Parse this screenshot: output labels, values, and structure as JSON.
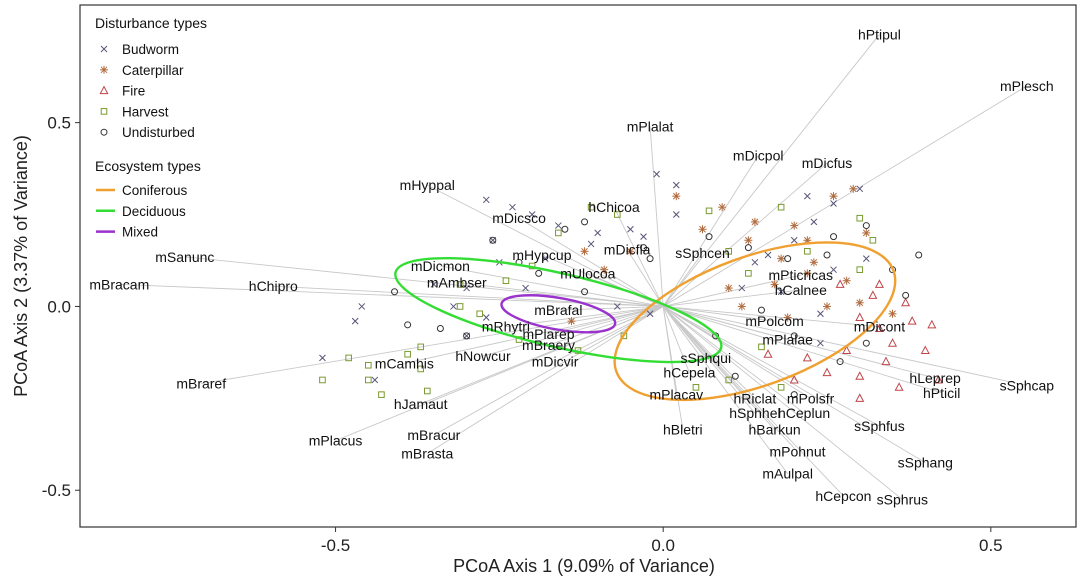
{
  "chart_data": {
    "type": "scatter",
    "xlabel": "PCoA Axis 1 (9.09% of Variance)",
    "ylabel": "PCoA Axis 2 (3.37% of Variance)",
    "xlim": [
      -0.89,
      0.63
    ],
    "ylim": [
      -0.6,
      0.82
    ],
    "x_ticks": [
      -0.5,
      0.0,
      0.5
    ],
    "y_ticks": [
      -0.5,
      0.0,
      0.5
    ],
    "x_tick_labels": [
      "-0.5",
      "0.0",
      "0.5"
    ],
    "y_tick_labels": [
      "-0.5",
      "0.0",
      "0.5"
    ],
    "grid": false,
    "legend_position": "top-left",
    "colors": {
      "budworm": "#555577",
      "caterpillar": "#b06a3c",
      "fire": "#c0454a",
      "harvest": "#7a9a30",
      "undisturbed": "#333333",
      "coniferous": "#f0a030",
      "deciduous": "#33dd33",
      "mixed": "#9933cc",
      "vectors": "#c8c8c8"
    },
    "legends": {
      "disturbance": {
        "title": "Disturbance types",
        "entries": [
          {
            "key": "budworm",
            "label": "Budworm",
            "marker": "x"
          },
          {
            "key": "caterpillar",
            "label": "Caterpillar",
            "marker": "asterisk"
          },
          {
            "key": "fire",
            "label": "Fire",
            "marker": "triangle"
          },
          {
            "key": "harvest",
            "label": "Harvest",
            "marker": "square"
          },
          {
            "key": "undisturbed",
            "label": "Undisturbed",
            "marker": "circle"
          }
        ]
      },
      "ecosystem": {
        "title": "Ecosystem types",
        "entries": [
          {
            "key": "coniferous",
            "label": "Coniferous"
          },
          {
            "key": "deciduous",
            "label": "Deciduous"
          },
          {
            "key": "mixed",
            "label": "Mixed"
          }
        ]
      }
    },
    "ellipses": [
      {
        "key": "coniferous",
        "cx": 0.14,
        "cy": -0.04,
        "rx": 0.225,
        "ry": 0.175,
        "angle": -20
      },
      {
        "key": "deciduous",
        "cx": -0.16,
        "cy": -0.01,
        "rx": 0.255,
        "ry": 0.1,
        "angle": 13
      },
      {
        "key": "mixed",
        "cx": -0.16,
        "cy": -0.02,
        "rx": 0.088,
        "ry": 0.043,
        "angle": 10
      }
    ],
    "species": [
      {
        "label": "hPtipul",
        "x": 0.33,
        "y": 0.74
      },
      {
        "label": "mPlesch",
        "x": 0.555,
        "y": 0.6
      },
      {
        "label": "mPlalat",
        "x": -0.02,
        "y": 0.49
      },
      {
        "label": "mDicpol",
        "x": 0.145,
        "y": 0.41
      },
      {
        "label": "mDicfus",
        "x": 0.25,
        "y": 0.39
      },
      {
        "label": "mHyppal",
        "x": -0.36,
        "y": 0.33
      },
      {
        "label": "hChicoa",
        "x": -0.075,
        "y": 0.27
      },
      {
        "label": "mDicsco",
        "x": -0.22,
        "y": 0.24
      },
      {
        "label": "mSanunc",
        "x": -0.73,
        "y": 0.135
      },
      {
        "label": "mDicfla",
        "x": -0.055,
        "y": 0.155
      },
      {
        "label": "sSphcen",
        "x": 0.06,
        "y": 0.145
      },
      {
        "label": "mHypcup",
        "x": -0.185,
        "y": 0.14
      },
      {
        "label": "mDicmon",
        "x": -0.34,
        "y": 0.11
      },
      {
        "label": "mUlocoa",
        "x": -0.115,
        "y": 0.09
      },
      {
        "label": "mPticricas",
        "x": 0.21,
        "y": 0.085
      },
      {
        "label": "mBracam",
        "x": -0.83,
        "y": 0.06
      },
      {
        "label": "hChipro",
        "x": -0.595,
        "y": 0.055
      },
      {
        "label": "mAmbser",
        "x": -0.315,
        "y": 0.065
      },
      {
        "label": "hCalnee",
        "x": 0.21,
        "y": 0.045
      },
      {
        "label": "mBrafal",
        "x": -0.16,
        "y": -0.01
      },
      {
        "label": "mPolcom",
        "x": 0.17,
        "y": -0.04
      },
      {
        "label": "mDicont",
        "x": 0.33,
        "y": -0.055
      },
      {
        "label": "mRhytri",
        "x": -0.24,
        "y": -0.055
      },
      {
        "label": "mPlarep",
        "x": -0.175,
        "y": -0.075
      },
      {
        "label": "mPlalae",
        "x": 0.19,
        "y": -0.09
      },
      {
        "label": "mBraery",
        "x": -0.175,
        "y": -0.105
      },
      {
        "label": "hNowcur",
        "x": -0.275,
        "y": -0.135
      },
      {
        "label": "mDicvir",
        "x": -0.165,
        "y": -0.15
      },
      {
        "label": "sSphqui",
        "x": 0.065,
        "y": -0.14
      },
      {
        "label": "mCamhis",
        "x": -0.395,
        "y": -0.155
      },
      {
        "label": "hCepela",
        "x": 0.04,
        "y": -0.18
      },
      {
        "label": "mBraref",
        "x": -0.705,
        "y": -0.21
      },
      {
        "label": "hLeprep",
        "x": 0.415,
        "y": -0.195
      },
      {
        "label": "sSphcap",
        "x": 0.555,
        "y": -0.215
      },
      {
        "label": "hPticil",
        "x": 0.425,
        "y": -0.235
      },
      {
        "label": "mPlacav",
        "x": 0.02,
        "y": -0.24
      },
      {
        "label": "hRiclat",
        "x": 0.14,
        "y": -0.25
      },
      {
        "label": "mPolsfr",
        "x": 0.225,
        "y": -0.25
      },
      {
        "label": "hJamaut",
        "x": -0.37,
        "y": -0.265
      },
      {
        "label": "hSphhel",
        "x": 0.14,
        "y": -0.29
      },
      {
        "label": "hCeplun",
        "x": 0.215,
        "y": -0.29
      },
      {
        "label": "sSphfus",
        "x": 0.33,
        "y": -0.325
      },
      {
        "label": "hBletri",
        "x": 0.03,
        "y": -0.335
      },
      {
        "label": "hBarkun",
        "x": 0.17,
        "y": -0.335
      },
      {
        "label": "mBracur",
        "x": -0.35,
        "y": -0.35
      },
      {
        "label": "mPlacus",
        "x": -0.5,
        "y": -0.365
      },
      {
        "label": "mPohnut",
        "x": 0.205,
        "y": -0.395
      },
      {
        "label": "mBrasta",
        "x": -0.36,
        "y": -0.4
      },
      {
        "label": "sSphang",
        "x": 0.4,
        "y": -0.425
      },
      {
        "label": "mAulpal",
        "x": 0.19,
        "y": -0.455
      },
      {
        "label": "hCepcon",
        "x": 0.275,
        "y": -0.515
      },
      {
        "label": "sSphrus",
        "x": 0.365,
        "y": -0.525
      }
    ],
    "sites": {
      "budworm": [
        [
          -0.27,
          0.29
        ],
        [
          -0.23,
          0.27
        ],
        [
          -0.2,
          0.25
        ],
        [
          -0.1,
          0.2
        ],
        [
          -0.05,
          0.21
        ],
        [
          -0.16,
          0.22
        ],
        [
          -0.11,
          0.17
        ],
        [
          -0.03,
          0.19
        ],
        [
          -0.26,
          0.18
        ],
        [
          -0.25,
          0.12
        ],
        [
          -0.18,
          0.13
        ],
        [
          -0.35,
          0.06
        ],
        [
          -0.3,
          0.05
        ],
        [
          -0.32,
          0.0
        ],
        [
          -0.46,
          0.0
        ],
        [
          -0.47,
          -0.04
        ],
        [
          -0.52,
          -0.14
        ],
        [
          -0.44,
          -0.2
        ],
        [
          -0.3,
          -0.08
        ],
        [
          -0.27,
          -0.03
        ],
        [
          -0.21,
          0.05
        ],
        [
          -0.01,
          0.36
        ],
        [
          0.02,
          0.33
        ],
        [
          0.02,
          0.25
        ],
        [
          -0.07,
          0.0
        ],
        [
          -0.02,
          -0.02
        ],
        [
          0.22,
          0.3
        ],
        [
          0.26,
          0.28
        ],
        [
          0.23,
          0.23
        ],
        [
          0.2,
          0.18
        ],
        [
          0.3,
          0.32
        ],
        [
          0.14,
          0.12
        ],
        [
          0.12,
          0.05
        ],
        [
          0.18,
          0.04
        ],
        [
          0.26,
          0.1
        ],
        [
          0.24,
          -0.02
        ],
        [
          0.31,
          0.13
        ],
        [
          0.24,
          -0.1
        ],
        [
          0.16,
          0.14
        ]
      ],
      "caterpillar": [
        [
          0.02,
          0.3
        ],
        [
          0.09,
          0.27
        ],
        [
          0.14,
          0.23
        ],
        [
          0.2,
          0.22
        ],
        [
          0.26,
          0.3
        ],
        [
          0.29,
          0.32
        ],
        [
          0.22,
          0.18
        ],
        [
          0.31,
          0.2
        ],
        [
          0.18,
          0.13
        ],
        [
          0.13,
          0.18
        ],
        [
          0.06,
          0.21
        ],
        [
          0.28,
          0.07
        ],
        [
          0.17,
          0.06
        ],
        [
          0.1,
          0.05
        ],
        [
          -0.12,
          0.15
        ],
        [
          -0.09,
          0.1
        ],
        [
          -0.05,
          0.15
        ],
        [
          0.35,
          -0.02
        ],
        [
          0.3,
          0.01
        ],
        [
          0.25,
          0.0
        ],
        [
          0.12,
          0.0
        ],
        [
          -0.14,
          -0.04
        ],
        [
          0.23,
          0.12
        ],
        [
          0.22,
          0.09
        ],
        [
          0.19,
          -0.03
        ]
      ],
      "fire": [
        [
          0.27,
          0.06
        ],
        [
          0.3,
          -0.03
        ],
        [
          0.33,
          -0.06
        ],
        [
          0.35,
          -0.1
        ],
        [
          0.38,
          -0.04
        ],
        [
          0.32,
          0.03
        ],
        [
          0.28,
          -0.12
        ],
        [
          0.3,
          -0.19
        ],
        [
          0.25,
          -0.18
        ],
        [
          0.22,
          -0.14
        ],
        [
          0.34,
          -0.15
        ],
        [
          0.4,
          -0.12
        ],
        [
          0.42,
          -0.2
        ],
        [
          0.36,
          -0.22
        ],
        [
          0.3,
          -0.25
        ],
        [
          0.2,
          -0.2
        ],
        [
          0.16,
          -0.13
        ],
        [
          0.37,
          0.01
        ],
        [
          0.41,
          -0.05
        ],
        [
          0.33,
          0.06
        ]
      ],
      "harvest": [
        [
          -0.48,
          -0.14
        ],
        [
          -0.52,
          -0.2
        ],
        [
          -0.45,
          -0.2
        ],
        [
          -0.43,
          -0.24
        ],
        [
          -0.39,
          -0.13
        ],
        [
          -0.37,
          -0.11
        ],
        [
          -0.37,
          -0.17
        ],
        [
          -0.36,
          -0.23
        ],
        [
          -0.31,
          0.0
        ],
        [
          -0.28,
          -0.02
        ],
        [
          -0.22,
          -0.09
        ],
        [
          -0.13,
          -0.12
        ],
        [
          -0.06,
          -0.08
        ],
        [
          -0.2,
          0.11
        ],
        [
          -0.16,
          0.2
        ],
        [
          -0.11,
          0.27
        ],
        [
          -0.07,
          0.25
        ],
        [
          0.07,
          0.26
        ],
        [
          0.18,
          0.27
        ],
        [
          0.3,
          0.24
        ],
        [
          0.32,
          0.18
        ],
        [
          0.22,
          0.15
        ],
        [
          0.1,
          0.15
        ],
        [
          0.1,
          -0.2
        ],
        [
          0.18,
          -0.22
        ],
        [
          0.05,
          -0.22
        ],
        [
          0.15,
          -0.11
        ],
        [
          0.3,
          0.1
        ],
        [
          -0.45,
          -0.16
        ],
        [
          -0.24,
          0.07
        ],
        [
          -0.31,
          0.06
        ],
        [
          0.13,
          0.09
        ]
      ],
      "undisturbed": [
        [
          -0.41,
          0.04
        ],
        [
          -0.39,
          -0.05
        ],
        [
          -0.34,
          -0.06
        ],
        [
          -0.26,
          0.18
        ],
        [
          -0.22,
          0.12
        ],
        [
          -0.19,
          0.09
        ],
        [
          -0.15,
          0.21
        ],
        [
          -0.12,
          0.23
        ],
        [
          -0.03,
          0.16
        ],
        [
          -0.02,
          0.13
        ],
        [
          0.07,
          0.19
        ],
        [
          0.13,
          0.16
        ],
        [
          0.19,
          0.13
        ],
        [
          0.26,
          0.19
        ],
        [
          0.31,
          0.22
        ],
        [
          0.35,
          0.1
        ],
        [
          0.39,
          0.14
        ],
        [
          0.37,
          0.03
        ],
        [
          0.31,
          -0.1
        ],
        [
          0.27,
          -0.15
        ],
        [
          0.2,
          -0.08
        ],
        [
          0.11,
          -0.19
        ],
        [
          0.2,
          -0.24
        ],
        [
          0.08,
          -0.08
        ],
        [
          -0.12,
          0.04
        ],
        [
          -0.3,
          -0.08
        ],
        [
          0.25,
          0.14
        ],
        [
          0.15,
          -0.01
        ]
      ]
    }
  }
}
